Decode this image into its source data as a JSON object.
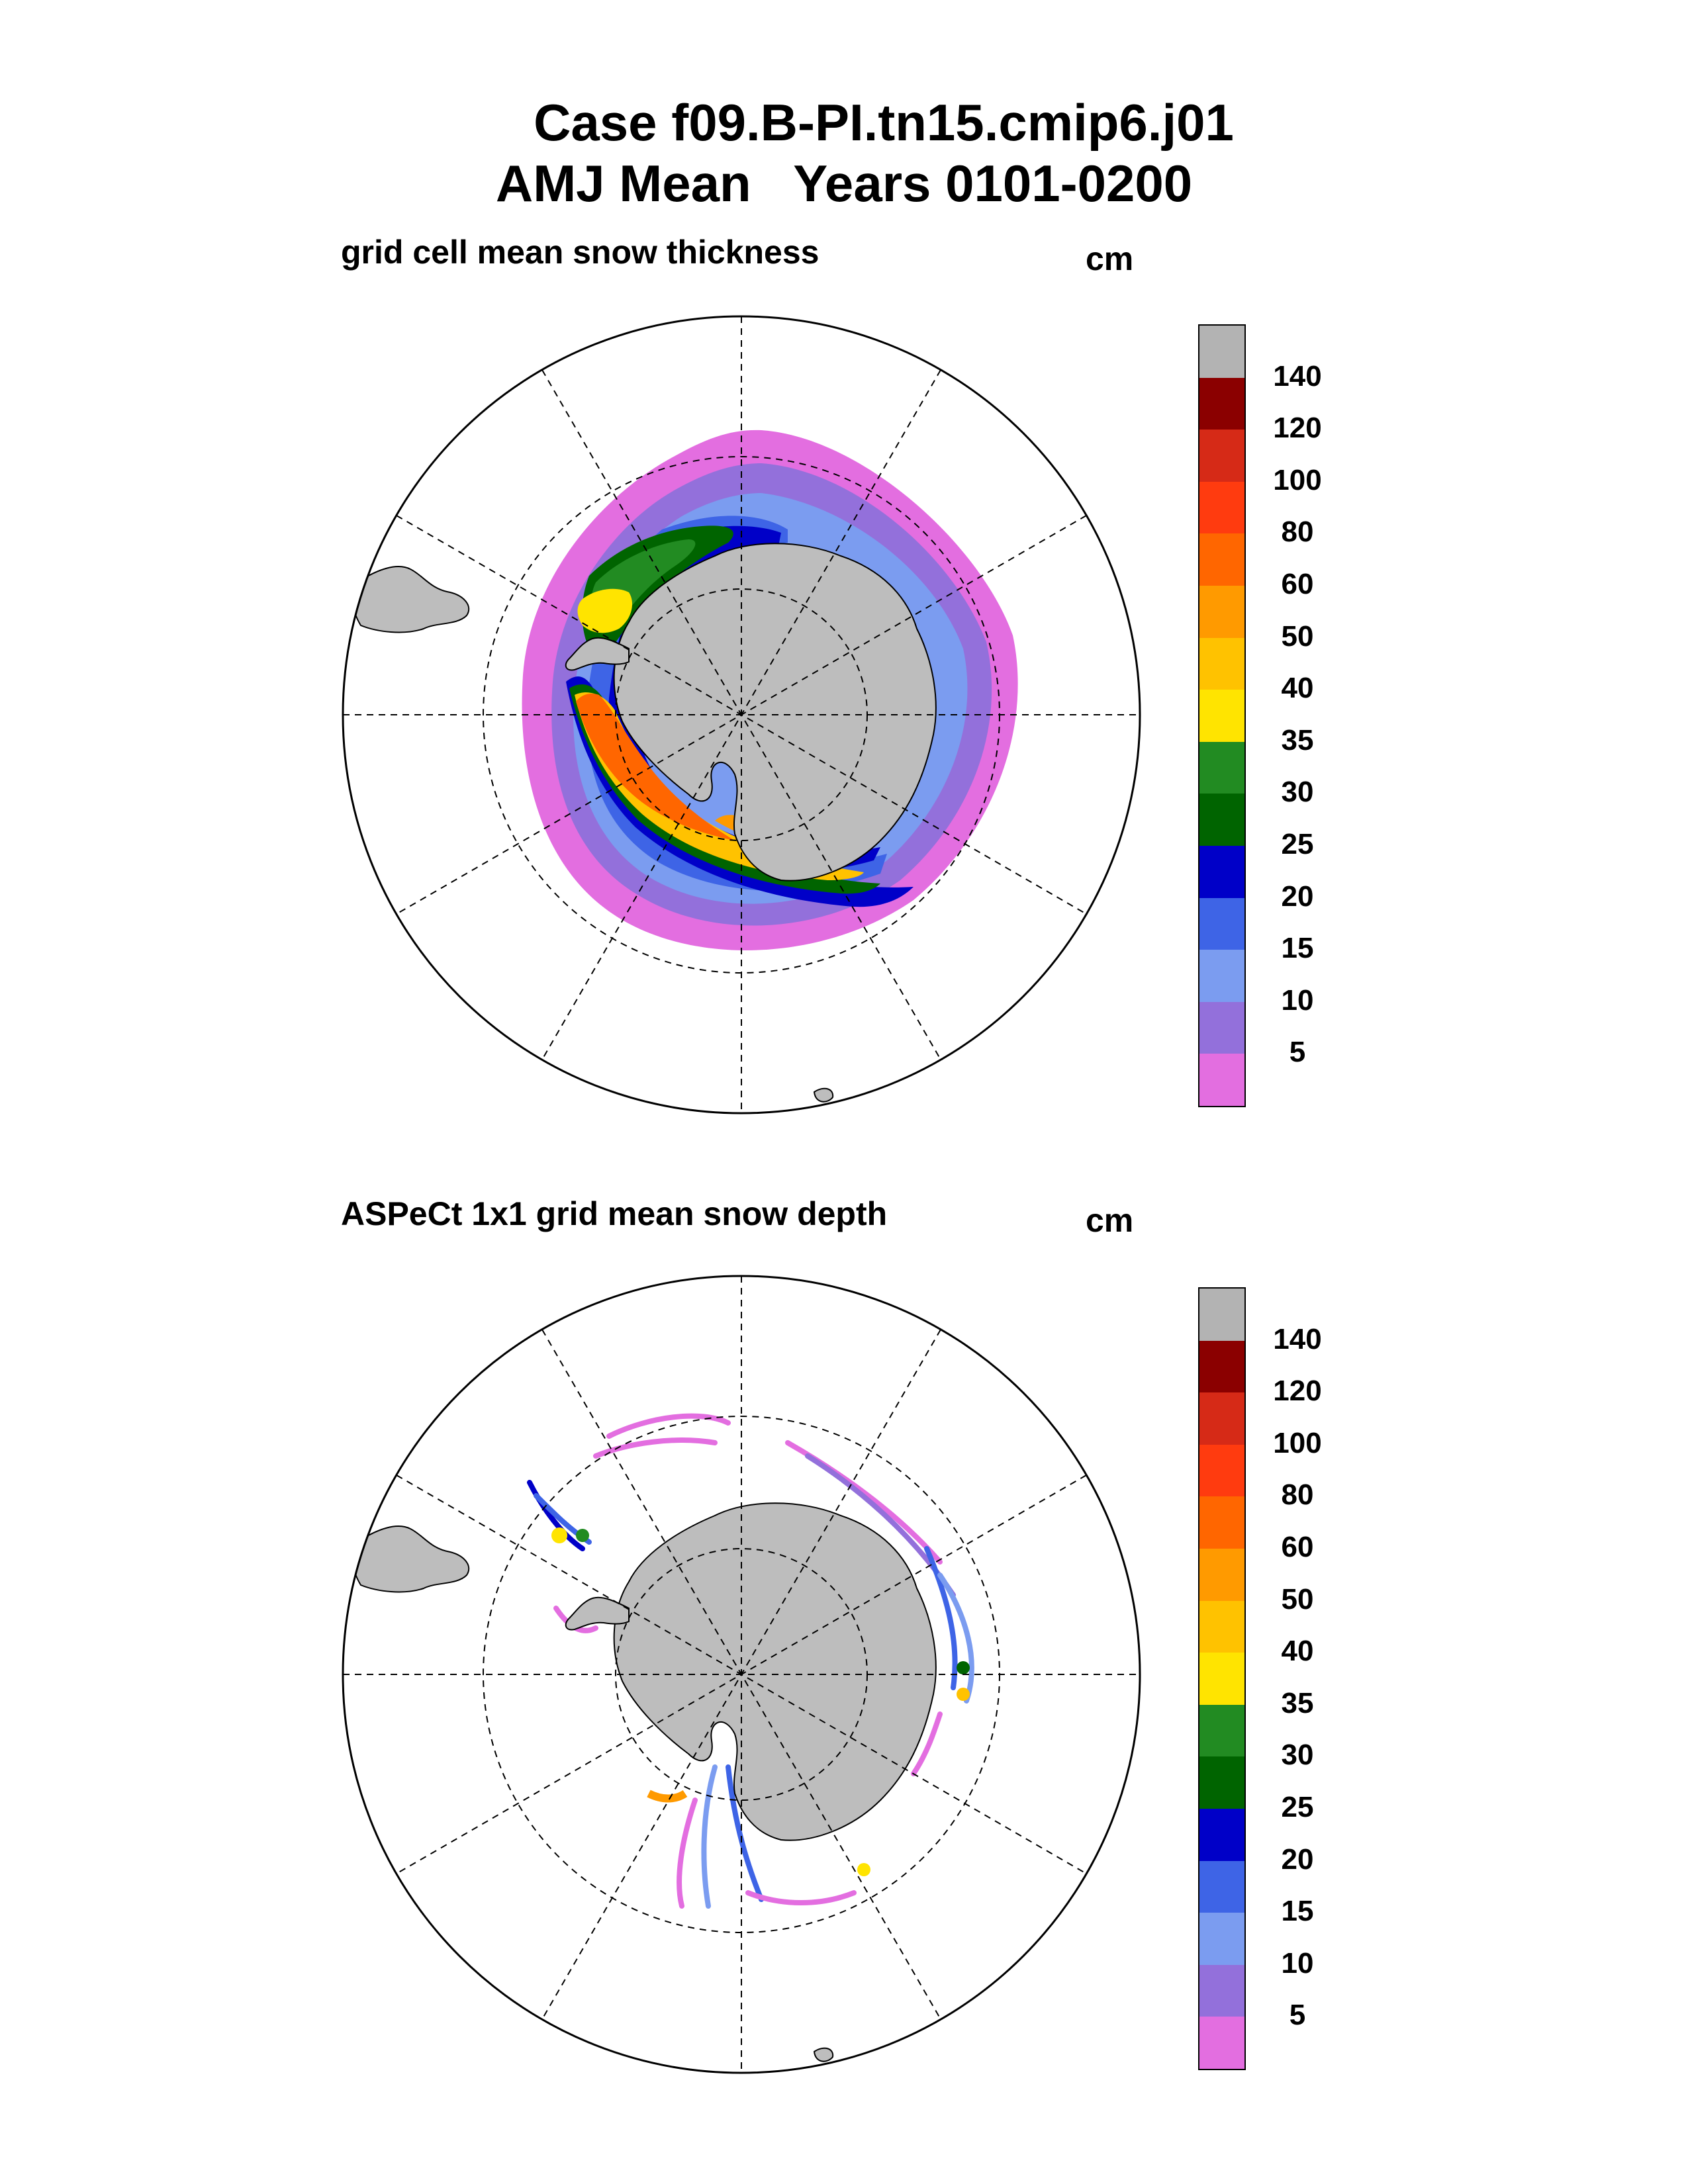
{
  "header": {
    "title_line1": "Case f09.B-PI.tn15.cmip6.j01",
    "title_line2": "AMJ Mean   Years 0101-0200"
  },
  "panels": [
    {
      "title": "grid cell mean snow thickness",
      "unit": "cm"
    },
    {
      "title": "ASPeCt 1x1 grid mean snow depth",
      "unit": "cm"
    }
  ],
  "colorbar": {
    "labels": [
      "140",
      "120",
      "100",
      "80",
      "60",
      "50",
      "40",
      "35",
      "30",
      "25",
      "20",
      "15",
      "10",
      "5"
    ],
    "colors": [
      "#b3b3b3",
      "#8b0000",
      "#d62a17",
      "#ff3b0f",
      "#ff6600",
      "#ff9a00",
      "#ffc200",
      "#ffe400",
      "#228b22",
      "#006400",
      "#0000c8",
      "#3e64e6",
      "#7b9cf0",
      "#9370db",
      "#e36ee0"
    ]
  },
  "map_colors": {
    "land": "#bdbdbd",
    "ocean": "#ffffff",
    "grid_line": "#000000"
  }
}
